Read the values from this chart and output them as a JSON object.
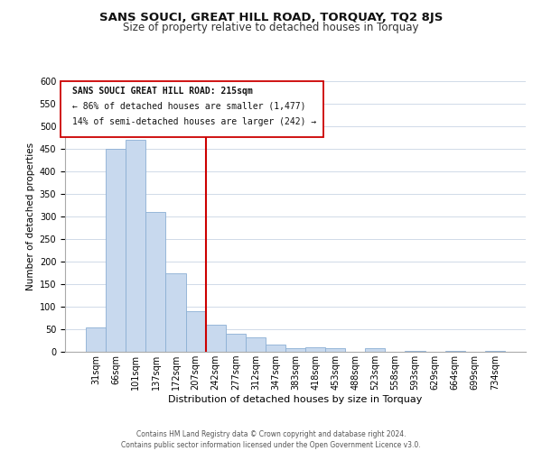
{
  "title": "SANS SOUCI, GREAT HILL ROAD, TORQUAY, TQ2 8JS",
  "subtitle": "Size of property relative to detached houses in Torquay",
  "xlabel": "Distribution of detached houses by size in Torquay",
  "ylabel": "Number of detached properties",
  "bar_labels": [
    "31sqm",
    "66sqm",
    "101sqm",
    "137sqm",
    "172sqm",
    "207sqm",
    "242sqm",
    "277sqm",
    "312sqm",
    "347sqm",
    "383sqm",
    "418sqm",
    "453sqm",
    "488sqm",
    "523sqm",
    "558sqm",
    "593sqm",
    "629sqm",
    "664sqm",
    "699sqm",
    "734sqm"
  ],
  "bar_values": [
    55,
    450,
    470,
    310,
    175,
    90,
    60,
    40,
    33,
    16,
    8,
    10,
    8,
    0,
    8,
    0,
    3,
    0,
    3,
    0,
    3
  ],
  "bar_color": "#c8d9ee",
  "bar_edge_color": "#8bafd4",
  "vline_x": 5.5,
  "vline_color": "#cc0000",
  "ylim": [
    0,
    600
  ],
  "yticks": [
    0,
    50,
    100,
    150,
    200,
    250,
    300,
    350,
    400,
    450,
    500,
    550,
    600
  ],
  "annotation_title": "SANS SOUCI GREAT HILL ROAD: 215sqm",
  "annotation_line1": "← 86% of detached houses are smaller (1,477)",
  "annotation_line2": "14% of semi-detached houses are larger (242) →",
  "footer_line1": "Contains HM Land Registry data © Crown copyright and database right 2024.",
  "footer_line2": "Contains public sector information licensed under the Open Government Licence v3.0.",
  "bg_color": "#ffffff",
  "grid_color": "#d0dae8",
  "annotation_box_color": "#ffffff",
  "annotation_box_edge": "#cc0000",
  "title_fontsize": 9.5,
  "subtitle_fontsize": 8.5,
  "ylabel_fontsize": 7.5,
  "xlabel_fontsize": 8,
  "tick_fontsize": 7,
  "ann_fontsize": 7,
  "footer_fontsize": 5.5
}
